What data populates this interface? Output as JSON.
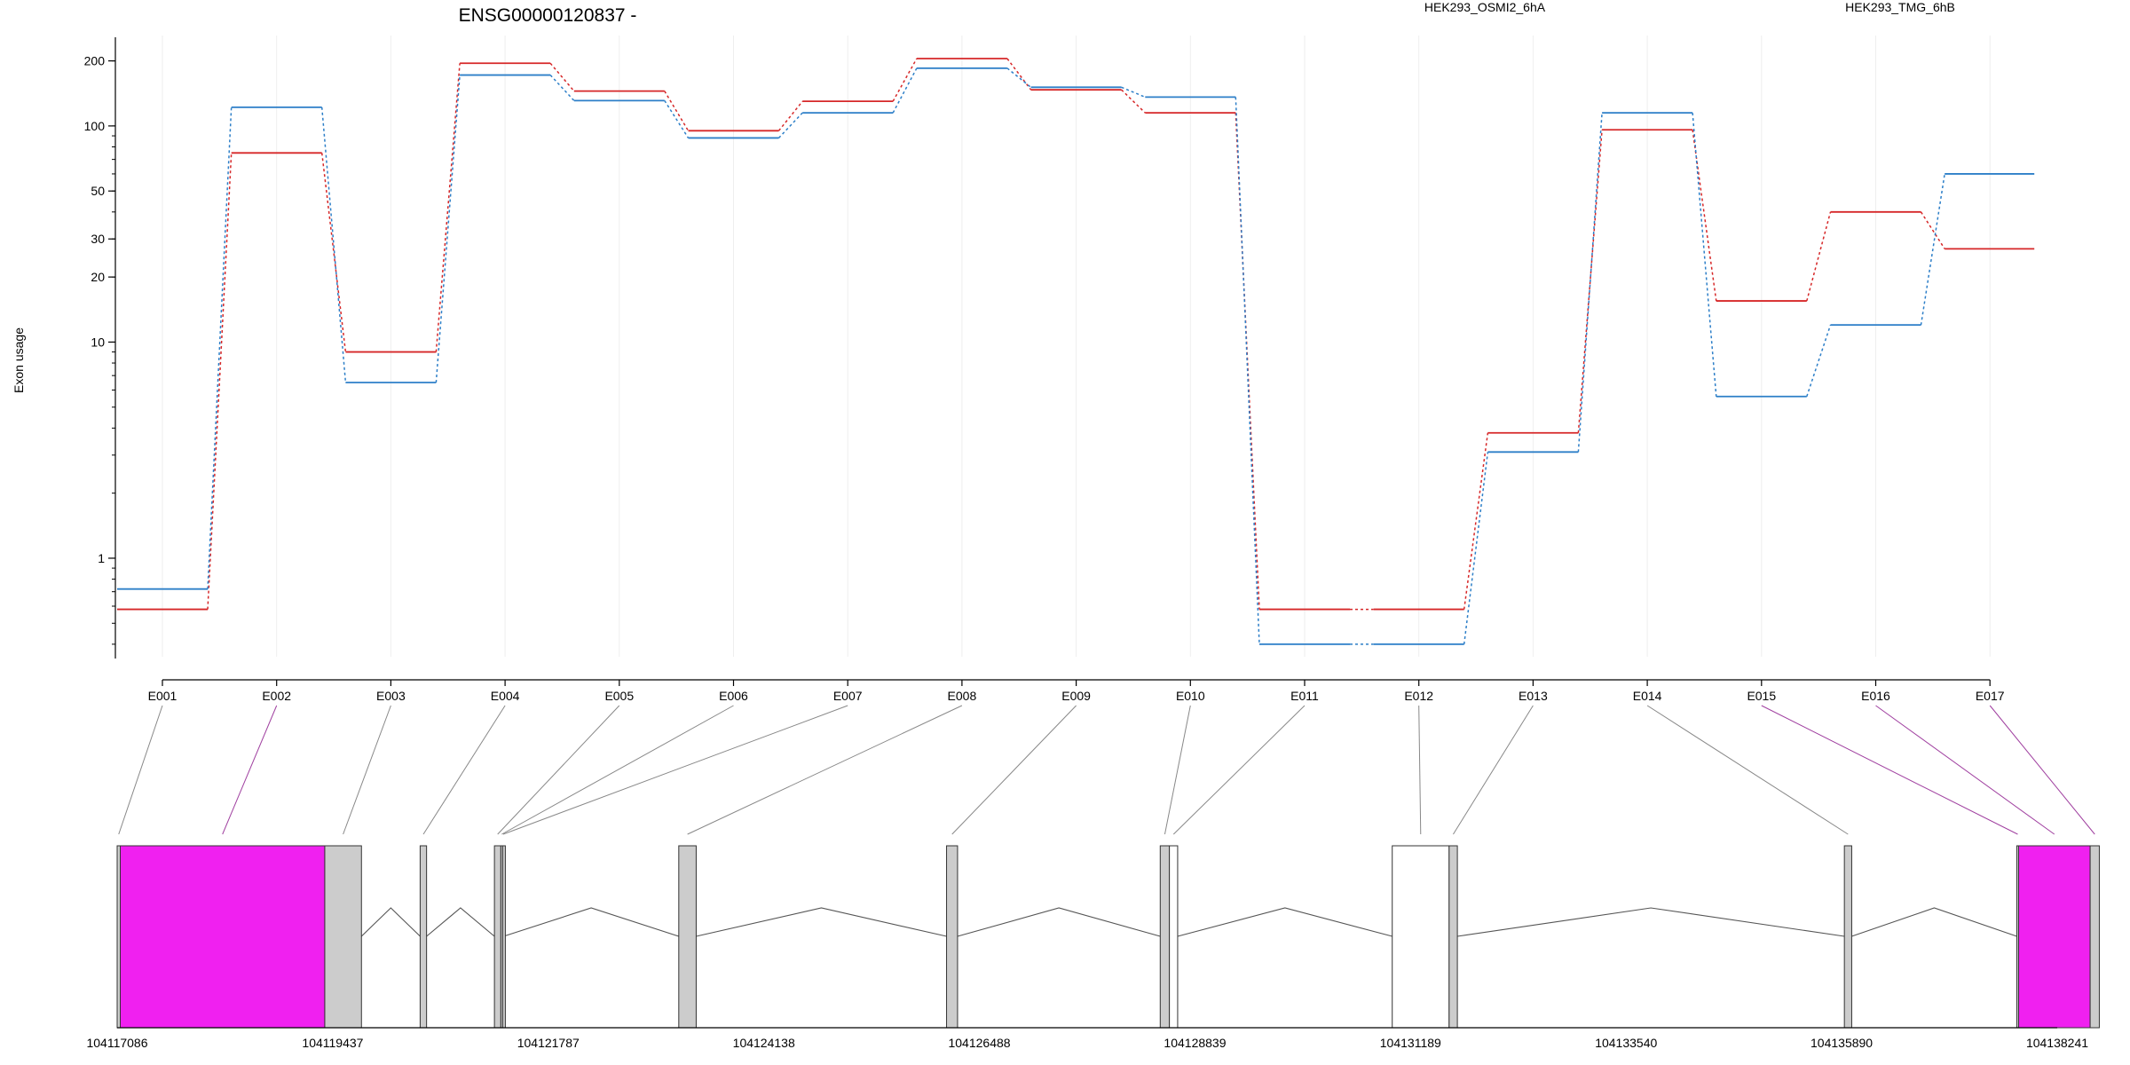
{
  "chart_data": {
    "type": "line",
    "title": "ENSG00000120837 -",
    "ylabel": "Exon usage",
    "xlabel": "",
    "y_scale": "log",
    "ylim": [
      0.35,
      250
    ],
    "y_ticks": [
      1,
      10,
      20,
      30,
      50,
      100,
      200
    ],
    "y_tick_labels": [
      "1",
      "10",
      "20",
      "30",
      "50",
      "100",
      "200"
    ],
    "grid": "vertical",
    "legend": "top-right",
    "categories": [
      "E001",
      "E002",
      "E003",
      "E004",
      "E005",
      "E006",
      "E007",
      "E008",
      "E009",
      "E010",
      "E011",
      "E012",
      "E013",
      "E014",
      "E015",
      "E016",
      "E017"
    ],
    "series": [
      {
        "name": "HEK293_OSMI2_6hA",
        "color": "#d62728",
        "values": [
          0.58,
          75,
          9,
          195,
          145,
          95,
          130,
          205,
          147,
          115,
          0.58,
          0.58,
          3.8,
          96,
          15.5,
          40,
          27
        ]
      },
      {
        "name": "HEK293_TMG_6hB",
        "color": "#2d7fc8",
        "values": [
          0.72,
          122,
          6.5,
          172,
          131,
          88,
          115,
          185,
          151,
          136,
          0.4,
          0.4,
          3.1,
          115,
          5.6,
          12,
          60
        ]
      }
    ],
    "gene_model": {
      "x_ticks": [
        104117086,
        104119437,
        104121787,
        104124138,
        104126488,
        104128839,
        104131189,
        104133540,
        104135890,
        104138241
      ],
      "x_tick_labels": [
        "104117086",
        "104119437",
        "104121787",
        "104124138",
        "104126488",
        "104128839",
        "104131189",
        "104133540",
        "104135890",
        "104138241"
      ],
      "exon_colors": {
        "normal": "#cccccc",
        "highlighted": "#f020f0",
        "empty": "#ffffff"
      },
      "exons": [
        {
          "id": "E001",
          "start": 104117086,
          "end": 104117120,
          "style": "normal"
        },
        {
          "id": "E002",
          "start": 104117120,
          "end": 104119350,
          "style": "highlighted"
        },
        {
          "id": "E003",
          "start": 104119350,
          "end": 104119750,
          "style": "normal"
        },
        {
          "id": "E004",
          "start": 104120390,
          "end": 104120460,
          "style": "normal"
        },
        {
          "id": "E005",
          "start": 104121200,
          "end": 104121270,
          "style": "normal"
        },
        {
          "id": "E006",
          "start": 104121270,
          "end": 104121290,
          "style": "normal"
        },
        {
          "id": "E007",
          "start": 104121290,
          "end": 104121300,
          "style": "normal"
        },
        {
          "id": "E008",
          "start": 104123210,
          "end": 104123400,
          "style": "normal"
        },
        {
          "id": "E009",
          "start": 104126130,
          "end": 104126250,
          "style": "normal"
        },
        {
          "id": "E010",
          "start": 104128460,
          "end": 104128560,
          "style": "normal"
        },
        {
          "id": "E011",
          "start": 104128560,
          "end": 104128650,
          "style": "empty"
        },
        {
          "id": "E012",
          "start": 104130990,
          "end": 104131610,
          "style": "empty"
        },
        {
          "id": "E013",
          "start": 104131610,
          "end": 104131700,
          "style": "normal"
        },
        {
          "id": "E014",
          "start": 104135920,
          "end": 104136000,
          "style": "normal"
        },
        {
          "id": "E015",
          "start": 104137800,
          "end": 104137820,
          "style": "normal"
        },
        {
          "id": "E016",
          "start": 104137820,
          "end": 104138600,
          "style": "highlighted"
        },
        {
          "id": "E017",
          "start": 104138600,
          "end": 104138700,
          "style": "normal"
        }
      ],
      "connector_colors": {
        "default": "#888888",
        "highlighted": "#a040a0"
      },
      "highlighted_connectors": [
        "E002",
        "E015",
        "E016",
        "E017"
      ],
      "introns": [
        [
          104119750,
          104120390
        ],
        [
          104120460,
          104121200
        ],
        [
          104121300,
          104123210
        ],
        [
          104123400,
          104126130
        ],
        [
          104126250,
          104128460
        ],
        [
          104128650,
          104130990
        ],
        [
          104131700,
          104135920
        ],
        [
          104136000,
          104137800
        ]
      ]
    }
  }
}
